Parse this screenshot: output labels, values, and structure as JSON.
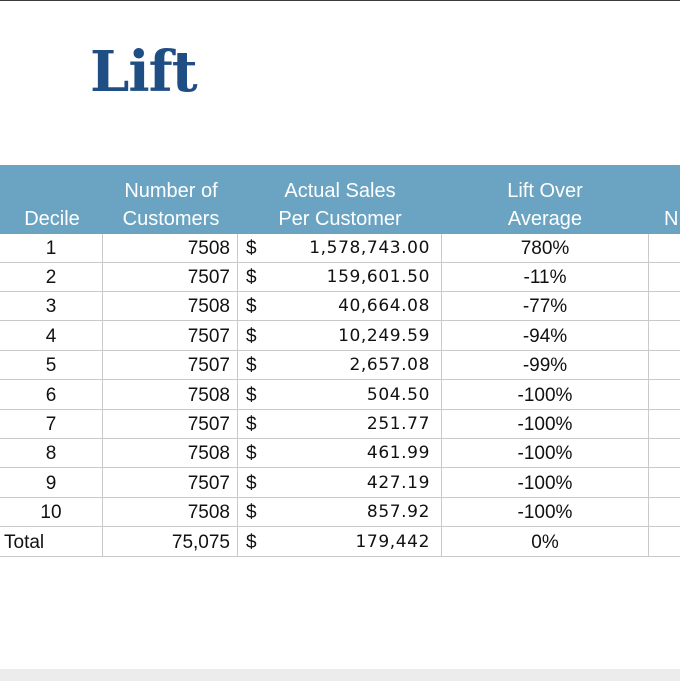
{
  "title": "Lift",
  "table": {
    "headers": {
      "decile": [
        "Decile"
      ],
      "customers": [
        "Number of",
        "Customers"
      ],
      "sales": [
        "Actual Sales",
        "Per Customer"
      ],
      "lift": [
        "Lift Over",
        "Average"
      ],
      "cut": [
        "N"
      ]
    },
    "currency_symbol": "$",
    "rows": [
      {
        "decile": "1",
        "customers": "7508",
        "sales": "1,578,743.00",
        "lift": "780%"
      },
      {
        "decile": "2",
        "customers": "7507",
        "sales": "159,601.50",
        "lift": "-11%"
      },
      {
        "decile": "3",
        "customers": "7508",
        "sales": "40,664.08",
        "lift": "-77%"
      },
      {
        "decile": "4",
        "customers": "7507",
        "sales": "10,249.59",
        "lift": "-94%"
      },
      {
        "decile": "5",
        "customers": "7507",
        "sales": "2,657.08",
        "lift": "-99%"
      },
      {
        "decile": "6",
        "customers": "7508",
        "sales": "504.50",
        "lift": "-100%"
      },
      {
        "decile": "7",
        "customers": "7507",
        "sales": "251.77",
        "lift": "-100%"
      },
      {
        "decile": "8",
        "customers": "7508",
        "sales": "461.99",
        "lift": "-100%"
      },
      {
        "decile": "9",
        "customers": "7507",
        "sales": "427.19",
        "lift": "-100%"
      },
      {
        "decile": "10",
        "customers": "7508",
        "sales": "857.92",
        "lift": "-100%"
      },
      {
        "decile": "Total",
        "customers": "75,075",
        "sales": "179,442",
        "lift": "0%"
      }
    ]
  },
  "colors": {
    "title": "#1f4e85",
    "header_band": "#6aa4c2",
    "grid_line": "#c9c9c9"
  }
}
